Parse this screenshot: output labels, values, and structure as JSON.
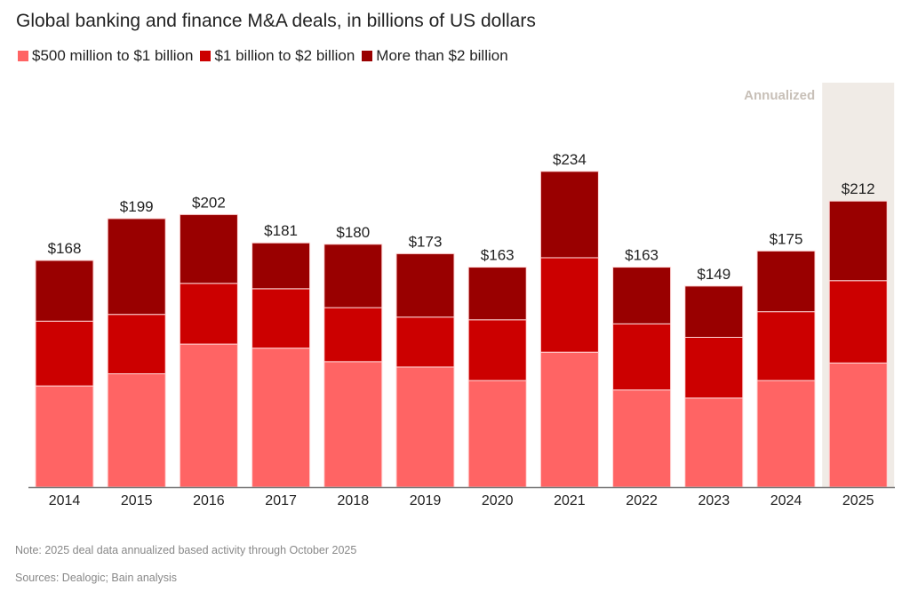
{
  "chart_data": {
    "type": "bar",
    "stacked": true,
    "title": "Global banking and finance M&A deals, in billions of US dollars",
    "xlabel": "",
    "ylabel": "",
    "ylim": [
      0,
      240
    ],
    "grid": false,
    "legend_position": "top-left",
    "categories": [
      "2014",
      "2015",
      "2016",
      "2017",
      "2018",
      "2019",
      "2020",
      "2021",
      "2022",
      "2023",
      "2024",
      "2025"
    ],
    "series": [
      {
        "name": "$500 million to $1 billion",
        "color": "#ff6464",
        "values": [
          75,
          84,
          106,
          103,
          93,
          89,
          79,
          100,
          72,
          66,
          79,
          92
        ]
      },
      {
        "name": "$1 billion to $2 billion",
        "color": "#cc0000",
        "values": [
          48,
          44,
          45,
          44,
          40,
          37,
          45,
          70,
          49,
          45,
          51,
          61
        ]
      },
      {
        "name": "More than $2 billion",
        "color": "#990000",
        "values": [
          45,
          71,
          51,
          34,
          47,
          47,
          39,
          64,
          42,
          38,
          45,
          59
        ]
      }
    ],
    "totals": [
      168,
      199,
      202,
      181,
      180,
      173,
      163,
      234,
      163,
      149,
      175,
      212
    ],
    "total_labels": [
      "$168",
      "$199",
      "$202",
      "$181",
      "$180",
      "$173",
      "$163",
      "$234",
      "$163",
      "$149",
      "$175",
      "$212"
    ],
    "annotations": [
      {
        "text": "Annualized",
        "category": "2025",
        "highlight_color": "#f0ebe6",
        "text_color": "#c8c0b8"
      }
    ]
  },
  "note": "Note: 2025 deal data annualized based activity through October 2025",
  "source": "Sources: Dealogic; Bain analysis"
}
